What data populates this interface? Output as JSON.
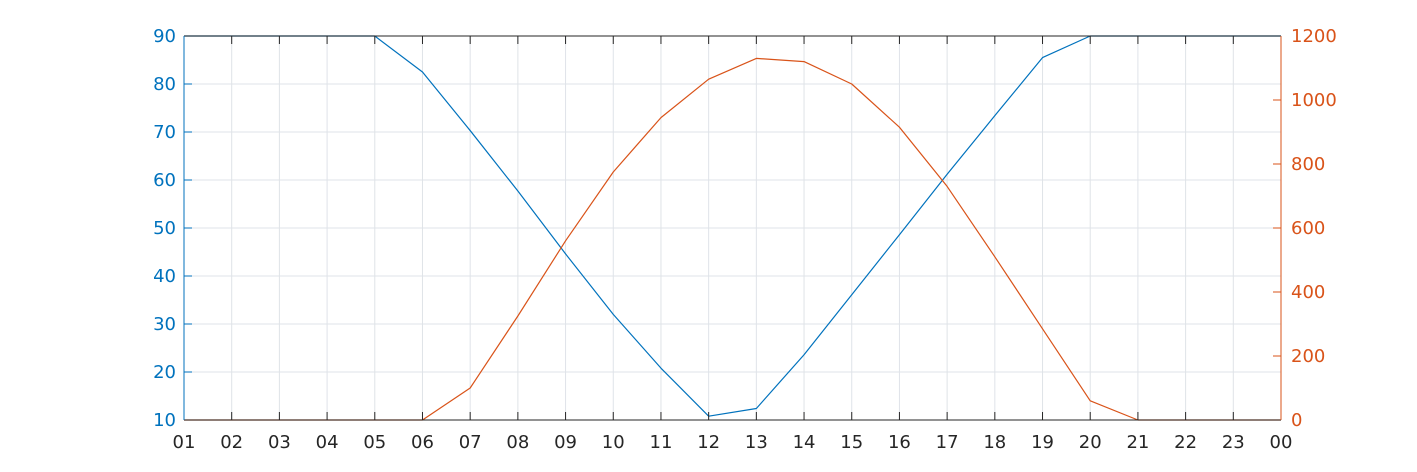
{
  "chart_data": {
    "type": "line",
    "x_tick_labels": [
      "01",
      "02",
      "03",
      "04",
      "05",
      "06",
      "07",
      "08",
      "09",
      "10",
      "11",
      "12",
      "13",
      "14",
      "15",
      "16",
      "17",
      "18",
      "19",
      "20",
      "21",
      "22",
      "23",
      "00"
    ],
    "x": [
      1,
      2,
      3,
      4,
      5,
      6,
      7,
      8,
      9,
      10,
      11,
      12,
      13,
      14,
      15,
      16,
      17,
      18,
      19,
      20,
      21,
      22,
      23,
      24
    ],
    "xlim": [
      1,
      24
    ],
    "y_left": {
      "lim": [
        10,
        90
      ],
      "ticks": [
        10,
        20,
        30,
        40,
        50,
        60,
        70,
        80,
        90
      ],
      "color": "#0072BD"
    },
    "y_right": {
      "lim": [
        0,
        1200
      ],
      "ticks": [
        0,
        200,
        400,
        600,
        800,
        1000,
        1200
      ],
      "color": "#D95319"
    },
    "grid": true,
    "series": [
      {
        "axis": "left",
        "color": "#0072BD",
        "values": [
          90,
          90,
          90,
          90,
          90,
          82.5,
          70.3,
          57.7,
          44.6,
          32.0,
          20.8,
          10.8,
          12.4,
          23.6,
          36.1,
          48.6,
          61.2,
          73.4,
          85.5,
          90,
          90,
          90,
          90,
          90
        ]
      },
      {
        "axis": "right",
        "color": "#D95319",
        "values": [
          0,
          0,
          0,
          0,
          0,
          0,
          100,
          325,
          560,
          775,
          945,
          1065,
          1130,
          1120,
          1050,
          915,
          730,
          510,
          285,
          60,
          0,
          0,
          0,
          0
        ]
      }
    ]
  }
}
